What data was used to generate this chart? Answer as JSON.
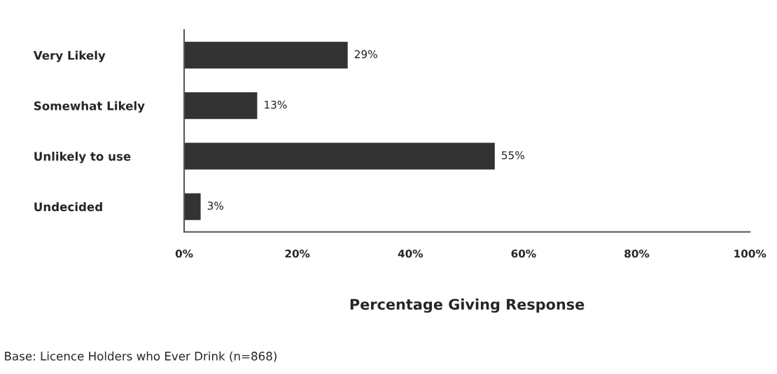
{
  "chart_data": {
    "type": "bar",
    "orientation": "horizontal",
    "categories": [
      "Very Likely",
      "Somewhat Likely",
      "Unlikely to use",
      "Undecided"
    ],
    "values": [
      29,
      13,
      55,
      3
    ],
    "value_labels": [
      "29%",
      "13%",
      "55%",
      "3%"
    ],
    "color": "#333333",
    "xlim": [
      0,
      100
    ],
    "xticks": [
      {
        "value": 0,
        "label": "0%"
      },
      {
        "value": 20,
        "label": "20%"
      },
      {
        "value": 40,
        "label": "40%"
      },
      {
        "value": 60,
        "label": "60%"
      },
      {
        "value": 80,
        "label": "80%"
      },
      {
        "value": 100,
        "label": "100%"
      }
    ],
    "xlabel": "Percentage Giving Response",
    "annotations": [
      "Base: Licence Holders who Ever Drink (n=868)"
    ],
    "grid": false,
    "legend": false
  }
}
